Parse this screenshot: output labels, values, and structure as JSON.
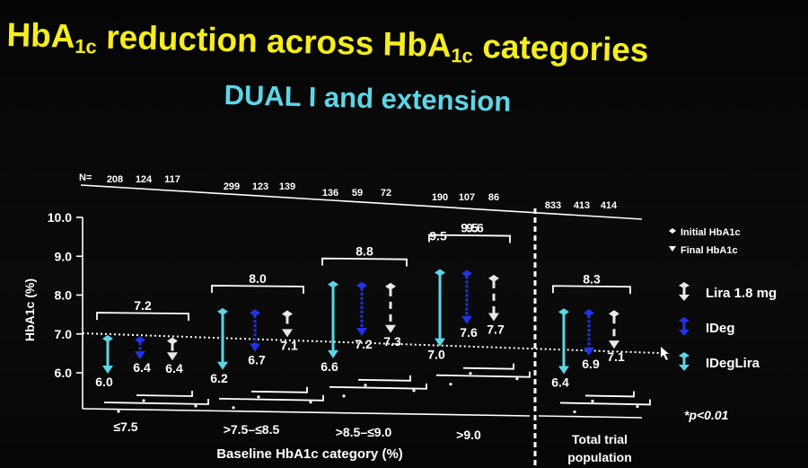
{
  "title": {
    "main": "HbA",
    "sub": "1c",
    "rest": " reduction across HbA",
    "sub2": "1c",
    "end": " categories"
  },
  "subtitle": "DUAL I and extension",
  "colors": {
    "lira": "#e8e8e8",
    "ideg": "#2232e6",
    "idegLira": "#5cd6e6",
    "axis": "#ffffff",
    "title": "#f5ee1c",
    "subtitle": "#5cd6e6"
  },
  "chart_data": {
    "type": "range-arrows",
    "ylabel": "HbA1c (%)",
    "xlabel": "Baseline HbA1c category (%)",
    "ylim": [
      5.5,
      10.0
    ],
    "y_ticks": [
      "10.0",
      "9.0",
      "8.0",
      "7.0",
      "6.0"
    ],
    "n_label": "N=",
    "reference_line": 7.0,
    "groups": [
      {
        "category": "≤7.5",
        "n": [
          "208",
          "124",
          "117"
        ],
        "initial": "7.2",
        "initial_value": 7.2,
        "final": {
          "idegLira": 6.0,
          "ideg": 6.4,
          "lira": 6.4
        },
        "final_labels": [
          "6.0",
          "6.4",
          "6.4"
        ]
      },
      {
        "category": ">7.5–≤8.5",
        "n": [
          "299",
          "123",
          "139"
        ],
        "initial": "8.0",
        "initial_value": 8.0,
        "final": {
          "idegLira": 6.2,
          "ideg": 6.7,
          "lira": 7.1
        },
        "final_labels": [
          "6.2",
          "6.7",
          "7.1"
        ]
      },
      {
        "category": ">8.5–≤9.0",
        "n": [
          "136",
          "59",
          "72"
        ],
        "initial": "8.8",
        "initial_value": 8.8,
        "final": {
          "idegLira": 6.6,
          "ideg": 7.2,
          "lira": 7.3
        },
        "final_labels": [
          "6.6",
          "7.2",
          "7.3"
        ]
      },
      {
        "category": ">9.0",
        "n": [
          "190",
          "107",
          "86"
        ],
        "initial": "9.5",
        "initial_value": 9.5,
        "initial2": "9.6",
        "initial2_value": 9.6,
        "final": {
          "idegLira": 7.0,
          "ideg": 7.6,
          "lira": 7.7
        },
        "final_labels": [
          "7.0",
          "7.6",
          "7.7"
        ]
      },
      {
        "category": "Total trial population",
        "n": [
          "833",
          "413",
          "414"
        ],
        "initial": "8.3",
        "initial_value": 8.3,
        "final": {
          "idegLira": 6.4,
          "ideg": 6.9,
          "lira": 7.1
        },
        "final_labels": [
          "6.4",
          "6.9",
          "7.1"
        ]
      }
    ],
    "legend": {
      "initial": "Initial HbA1c",
      "final": "Final HbA1c",
      "lira": "Lira 1.8 mg",
      "ideg": "IDeg",
      "idegLira": "IDegLira",
      "placement": "right"
    },
    "footnote": "*p<0.01"
  }
}
